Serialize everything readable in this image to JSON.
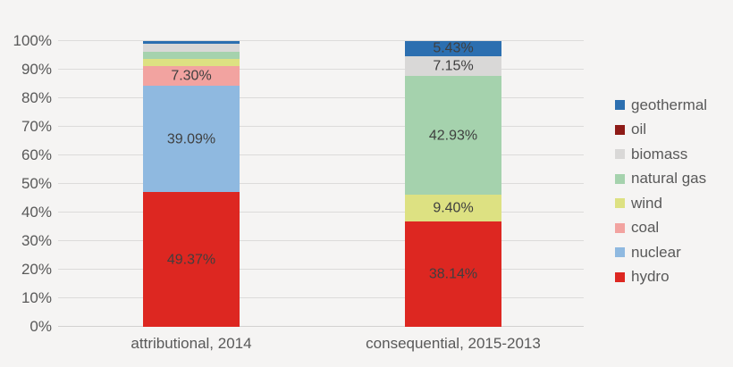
{
  "colors": {
    "background": "#f5f4f3",
    "gridline": "#dcdbda",
    "axis_text": "#595959",
    "data_label_text": "#3f3f3f"
  },
  "chart_data": {
    "type": "bar",
    "subtype": "stacked-100-percent",
    "title": "",
    "xlabel": "",
    "ylabel": "",
    "ylim": [
      0,
      100
    ],
    "grid": true,
    "legend_position": "right",
    "categories": [
      "attributional, 2014",
      "consequential, 2015-2013"
    ],
    "y_ticks": [
      "0%",
      "10%",
      "20%",
      "30%",
      "40%",
      "50%",
      "60%",
      "70%",
      "80%",
      "90%",
      "100%"
    ],
    "series": [
      {
        "name": "hydro",
        "color": "#dd2721",
        "values": [
          49.37,
          38.14
        ],
        "labels": [
          "49.37%",
          "38.14%"
        ]
      },
      {
        "name": "nuclear",
        "color": "#8fb9e0",
        "values": [
          39.09,
          0
        ],
        "labels": [
          "39.09%",
          ""
        ]
      },
      {
        "name": "coal",
        "color": "#f2a3a0",
        "values": [
          7.3,
          0
        ],
        "labels": [
          "7.30%",
          ""
        ]
      },
      {
        "name": "wind",
        "color": "#dde182",
        "values": [
          2.6,
          9.4
        ],
        "labels": [
          "",
          "9.40%"
        ]
      },
      {
        "name": "natural gas",
        "color": "#a5d2ad",
        "values": [
          2.6,
          42.93
        ],
        "labels": [
          "",
          "42.93%"
        ]
      },
      {
        "name": "biomass",
        "color": "#d9d8d7",
        "values": [
          3.0,
          7.15
        ],
        "labels": [
          "",
          "7.15%"
        ]
      },
      {
        "name": "oil",
        "color": "#8e1b17",
        "values": [
          0,
          0
        ],
        "labels": [
          "",
          ""
        ]
      },
      {
        "name": "geothermal",
        "color": "#2c6fb0",
        "values": [
          1.0,
          5.43
        ],
        "labels": [
          "",
          "5.43%"
        ]
      }
    ],
    "legend_order": [
      "geothermal",
      "oil",
      "biomass",
      "natural gas",
      "wind",
      "coal",
      "nuclear",
      "hydro"
    ],
    "note": "segment heights are normalized per bar; unlabeled segment values estimated from gridlines"
  }
}
